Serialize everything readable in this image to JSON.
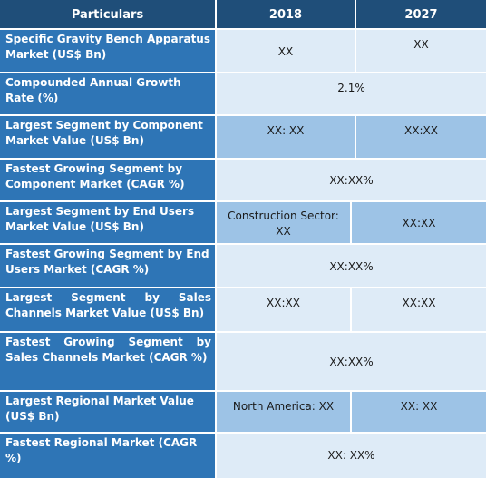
{
  "header": {
    "particulars": "Particulars",
    "year1": "2018",
    "year2": "2027"
  },
  "rows": [
    {
      "label": "Specific Gravity  Bench Apparatus Market (US$ Bn)",
      "v2018": "XX",
      "v2027": "XX"
    },
    {
      "label": "Compounded Annual Growth Rate (%)",
      "merged": "2.1%"
    },
    {
      "label": "Largest Segment by Component Market Value (US$ Bn)",
      "v2018": "XX: XX",
      "v2027": "XX:XX"
    },
    {
      "label": "Fastest Growing Segment by Component Market (CAGR %)",
      "merged": "XX:XX%"
    },
    {
      "label": "Largest Segment by End Users Market Value (US$ Bn)",
      "v2018": "Construction Sector: XX",
      "v2027": "XX:XX"
    },
    {
      "label": "Fastest Growing Segment by End Users Market (CAGR %)",
      "merged": "XX:XX%"
    },
    {
      "label": "Largest  Segment  by  Sales Channels Market Value (US$ Bn)",
      "v2018": "XX:XX",
      "v2027": "XX:XX"
    },
    {
      "label": "Fastest  Growing  Segment  by Sales  Channels  Market  (CAGR %)",
      "merged": "XX:XX%"
    },
    {
      "label": "Largest Regional Market Value (US$ Bn)",
      "v2018": "North America: XX",
      "v2027": "XX: XX"
    },
    {
      "label": "Fastest Regional Market (CAGR %)",
      "merged": "XX: XX%"
    }
  ]
}
